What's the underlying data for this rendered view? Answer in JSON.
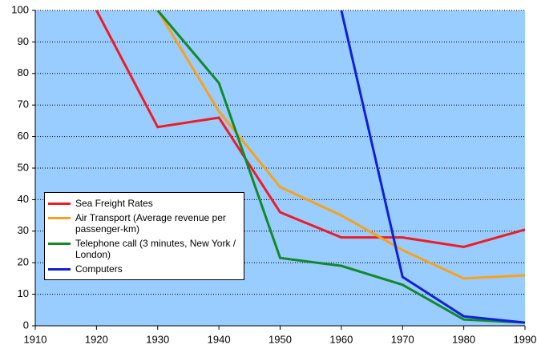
{
  "chart_data": {
    "type": "line",
    "x": [
      1920,
      1930,
      1940,
      1950,
      1960,
      1970,
      1980,
      1990
    ],
    "series": [
      {
        "name": "Sea Freight Rates",
        "color": "#ee1c25",
        "values": [
          100,
          63,
          66,
          36,
          28,
          28,
          25,
          30.5
        ]
      },
      {
        "name": "Air Transport (Average revenue per passenger-km)",
        "color": "#f7a21b",
        "values": [
          null,
          100,
          68,
          44,
          35,
          24,
          15,
          16
        ]
      },
      {
        "name": "Telephone call (3 minutes, New York / London)",
        "color": "#13892b",
        "values": [
          null,
          100,
          77,
          21.5,
          19,
          13,
          2,
          1
        ]
      },
      {
        "name": "Computers",
        "color": "#1020d8",
        "values": [
          null,
          null,
          null,
          null,
          100,
          15.5,
          3,
          1
        ]
      }
    ],
    "xlim": [
      1910,
      1990
    ],
    "xticks": [
      1910,
      1920,
      1930,
      1940,
      1950,
      1960,
      1970,
      1980,
      1990
    ],
    "ylim": [
      0,
      100
    ],
    "yticks": [
      0,
      10,
      20,
      30,
      40,
      50,
      60,
      70,
      80,
      90,
      100
    ],
    "grid": true,
    "legend": "lower-left",
    "background": "#99ccff"
  }
}
